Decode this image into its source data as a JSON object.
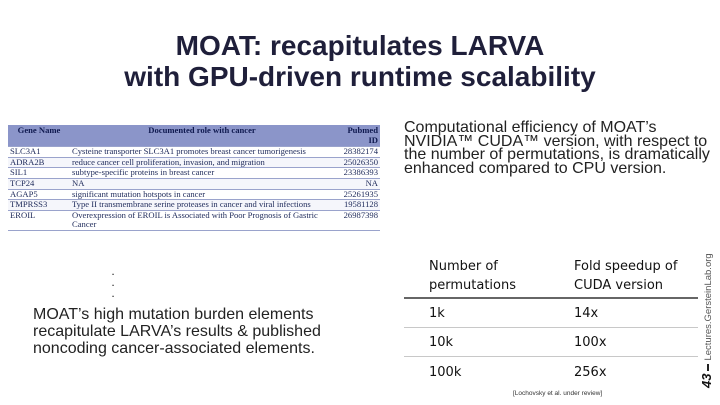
{
  "title": {
    "line1": "MOAT: recapitulates LARVA",
    "line2": "with GPU-driven runtime scalability"
  },
  "gene_table": {
    "headers": [
      "Gene Name",
      "Documented role with cancer",
      "Pubmed ID"
    ],
    "rows": [
      {
        "gene": "SLC3A1",
        "role": "Cysteine transporter SLC3A1 promotes breast cancer tumorigenesis",
        "pubmed": "28382174"
      },
      {
        "gene": "ADRA2B",
        "role": "reduce cancer cell proliferation, invasion, and migration",
        "pubmed": "25026350"
      },
      {
        "gene": "SIL1",
        "role": "subtype-specific proteins in breast cancer",
        "pubmed": "23386393"
      },
      {
        "gene": "TCP24",
        "role": "NA",
        "pubmed": "NA"
      },
      {
        "gene": "AGAP5",
        "role": "significant mutation hotspots in cancer",
        "pubmed": "25261935"
      },
      {
        "gene": "TMPRSS3",
        "role": "Type II transmembrane serine proteases in cancer and viral infections",
        "pubmed": "19581128"
      },
      {
        "gene": "EROIL",
        "role": "Overexpression of EROIL is Associated with Poor Prognosis of Gastric Cancer",
        "pubmed": "26987398"
      }
    ]
  },
  "ellipsis": [
    ".",
    ".",
    "."
  ],
  "left_text": "MOAT’s high mutation burden elements recapitulate LARVA’s results & published noncoding cancer-associated elements.",
  "right_text": "Computational efficiency of MOAT’s NVIDIA™ CUDA™ version, with respect to the number of permutations, is dramatically enhanced compared to CPU version.",
  "perf_table": {
    "headers": [
      "Number of permutations",
      "Fold speedup of CUDA version"
    ],
    "rows": [
      {
        "perms": "1k",
        "speedup": "14x"
      },
      {
        "perms": "10k",
        "speedup": "100x"
      },
      {
        "perms": "100k",
        "speedup": "256x"
      }
    ]
  },
  "citation": "[Lochovsky et al. under review]",
  "side": {
    "slide_number": "43",
    "source": "Lectures.GersteinLab.org"
  }
}
